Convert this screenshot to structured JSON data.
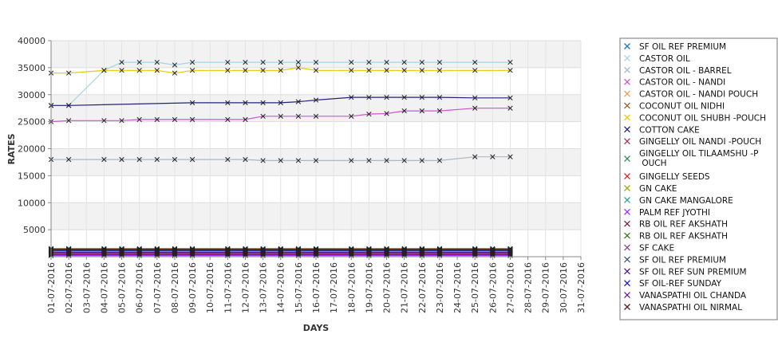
{
  "chart_data": {
    "type": "line",
    "title": "",
    "xlabel": "DAYS",
    "ylabel": "RATES",
    "ylim": [
      0,
      40000
    ],
    "yticks": [
      5000,
      10000,
      15000,
      20000,
      25000,
      30000,
      35000,
      40000
    ],
    "grid": true,
    "legend_position": "right",
    "categories": [
      "01-07-2016",
      "02-07-2016",
      "03-07-2016",
      "04-07-2016",
      "05-07-2016",
      "06-07-2016",
      "07-07-2016",
      "08-07-2016",
      "09-07-2016",
      "10-07-2016",
      "11-07-2016",
      "12-07-2016",
      "13-07-2016",
      "14-07-2016",
      "15-07-2016",
      "16-07-2016",
      "17-07-2016",
      "18-07-2016",
      "19-07-2016",
      "20-07-2016",
      "21-07-2016",
      "22-07-2016",
      "23-07-2016",
      "24-07-2016",
      "25-07-2016",
      "26-07-2016",
      "27-07-2016",
      "28-07-2016",
      "29-07-2016",
      "30-07-2016",
      "31-07-2016"
    ],
    "series": [
      {
        "name": " SF OIL REF PREMIUM",
        "color": "#1f77b4",
        "values": [
          null,
          null,
          null,
          null,
          1200,
          1200,
          1200,
          1200,
          1200,
          null,
          1200,
          1200,
          1200,
          1200,
          1200,
          1200,
          null,
          1200,
          1200,
          1200,
          1200,
          1200,
          1200,
          null,
          1200,
          1200,
          1200,
          null,
          null,
          null,
          null
        ]
      },
      {
        "name": "CASTOR OIL",
        "color": "#a4d4e8",
        "values": [
          28000,
          28000,
          null,
          34500,
          36000,
          36000,
          36000,
          35500,
          36000,
          null,
          36000,
          36000,
          36000,
          36000,
          36000,
          36000,
          null,
          36000,
          36000,
          36000,
          36000,
          36000,
          36000,
          null,
          36000,
          null,
          36000,
          null,
          null,
          null,
          null
        ]
      },
      {
        "name": "CASTOR OIL - BARREL",
        "color": "#aab8c4",
        "values": [
          18000,
          18000,
          null,
          18000,
          18000,
          18000,
          18000,
          18000,
          18000,
          null,
          18000,
          18000,
          17800,
          17800,
          17800,
          17800,
          null,
          17800,
          17800,
          17800,
          17800,
          17800,
          17800,
          null,
          18500,
          18500,
          18500,
          null,
          null,
          null,
          null
        ]
      },
      {
        "name": "CASTOR OIL - NANDI",
        "color": "#cc55cc",
        "values": [
          25000,
          25200,
          null,
          25200,
          25200,
          25400,
          25400,
          25400,
          25400,
          null,
          25400,
          25400,
          26000,
          26000,
          26000,
          26000,
          null,
          26000,
          26400,
          26500,
          27000,
          27000,
          27000,
          null,
          27500,
          null,
          27500,
          null,
          null,
          null,
          null
        ]
      },
      {
        "name": "CASTOR OIL - NANDI POUCH",
        "color": "#e0a060",
        "values": [
          900,
          900,
          null,
          900,
          900,
          900,
          900,
          900,
          900,
          null,
          900,
          900,
          900,
          900,
          900,
          900,
          null,
          900,
          900,
          900,
          900,
          900,
          900,
          null,
          900,
          900,
          900,
          null,
          null,
          null,
          null
        ]
      },
      {
        "name": "COCONUT OIL NIDHI",
        "color": "#996633",
        "values": [
          1500,
          1500,
          null,
          1500,
          1500,
          1500,
          1500,
          1500,
          1500,
          null,
          1500,
          1500,
          1500,
          1500,
          1500,
          1500,
          null,
          1500,
          1500,
          1500,
          1500,
          1500,
          1500,
          null,
          1500,
          1500,
          1500,
          null,
          null,
          null,
          null
        ]
      },
      {
        "name": "COCONUT OIL SHUBH -POUCH",
        "color": "#e8c800",
        "values": [
          34000,
          34000,
          null,
          34500,
          34500,
          34500,
          34500,
          34000,
          34500,
          null,
          34500,
          34500,
          34500,
          34500,
          35000,
          34500,
          null,
          34500,
          34500,
          34500,
          34500,
          34500,
          34500,
          null,
          34500,
          null,
          34500,
          null,
          null,
          null,
          null
        ]
      },
      {
        "name": "COTTON CAKE",
        "color": "#22227a",
        "values": [
          28000,
          28000,
          null,
          null,
          null,
          null,
          null,
          null,
          28500,
          null,
          28500,
          28500,
          28500,
          28500,
          28700,
          29000,
          null,
          29500,
          29500,
          29500,
          29500,
          29500,
          29500,
          null,
          29400,
          null,
          29400,
          null,
          null,
          null,
          null
        ]
      },
      {
        "name": "GINGELLY OIL NANDI -POUCH",
        "color": "#b03060",
        "values": [
          300,
          300,
          null,
          300,
          300,
          300,
          300,
          300,
          300,
          null,
          300,
          300,
          300,
          300,
          300,
          300,
          null,
          300,
          300,
          300,
          300,
          300,
          300,
          null,
          300,
          300,
          300,
          null,
          null,
          null,
          null
        ]
      },
      {
        "name": "GINGELLY OIL TILAAMSHU -P OUCH",
        "color": "#2e8b57",
        "values": [
          1300,
          1300,
          null,
          1300,
          1300,
          1300,
          1300,
          1300,
          1300,
          null,
          1300,
          1300,
          1300,
          1300,
          1300,
          1300,
          null,
          1300,
          1300,
          1300,
          1300,
          1300,
          1300,
          null,
          1300,
          1300,
          1300,
          null,
          null,
          null,
          null
        ]
      },
      {
        "name": "GINGELLY SEEDS",
        "color": "#dd2222",
        "values": [
          500,
          500,
          null,
          500,
          500,
          500,
          500,
          500,
          500,
          null,
          500,
          500,
          500,
          500,
          500,
          500,
          null,
          500,
          500,
          500,
          500,
          500,
          500,
          null,
          500,
          500,
          500,
          null,
          null,
          null,
          null
        ]
      },
      {
        "name": "GN CAKE",
        "color": "#9aaa1a",
        "values": [
          1100,
          1100,
          null,
          1100,
          1100,
          1100,
          1100,
          1100,
          1100,
          null,
          1100,
          1100,
          1100,
          1100,
          1100,
          1100,
          null,
          1100,
          1100,
          1100,
          1100,
          1100,
          1100,
          null,
          1100,
          1100,
          1100,
          null,
          null,
          null,
          null
        ]
      },
      {
        "name": "GN CAKE MANGALORE",
        "color": "#2aa198",
        "values": [
          1000,
          1000,
          null,
          1000,
          1000,
          1000,
          1000,
          1000,
          1000,
          null,
          1000,
          1000,
          1000,
          1000,
          1000,
          1000,
          null,
          1000,
          1000,
          1000,
          1000,
          1000,
          1000,
          null,
          1000,
          1000,
          1000,
          null,
          null,
          null,
          null
        ]
      },
      {
        "name": "PALM REF JYOTHI",
        "color": "#9b30ff",
        "values": [
          200,
          200,
          null,
          200,
          200,
          200,
          200,
          200,
          200,
          null,
          200,
          200,
          200,
          200,
          200,
          200,
          null,
          200,
          200,
          200,
          200,
          200,
          200,
          null,
          200,
          200,
          200,
          null,
          null,
          null,
          null
        ]
      },
      {
        "name": "RB OIL REF  AKSHATH",
        "color": "#7a1f4a",
        "values": [
          700,
          700,
          null,
          700,
          700,
          700,
          700,
          700,
          700,
          null,
          700,
          700,
          700,
          700,
          700,
          700,
          null,
          700,
          700,
          700,
          700,
          700,
          700,
          null,
          700,
          700,
          700,
          null,
          null,
          null,
          null
        ]
      },
      {
        "name": "RB OIL REF AKSHATH",
        "color": "#3a7a1a",
        "values": [
          1400,
          1400,
          null,
          1400,
          1400,
          1400,
          1400,
          1400,
          1400,
          null,
          1400,
          1400,
          1400,
          1400,
          1400,
          1400,
          null,
          1400,
          1400,
          1400,
          1400,
          1400,
          1400,
          null,
          1400,
          1400,
          1400,
          null,
          null,
          null,
          null
        ]
      },
      {
        "name": "SF CAKE",
        "color": "#8e4a8e",
        "values": [
          600,
          600,
          null,
          600,
          600,
          600,
          600,
          600,
          600,
          null,
          600,
          600,
          600,
          600,
          600,
          600,
          null,
          600,
          600,
          600,
          600,
          600,
          600,
          null,
          600,
          600,
          600,
          null,
          null,
          null,
          null
        ]
      },
      {
        "name": "SF OIL REF PREMIUM",
        "color": "#335577",
        "values": [
          1250,
          1250,
          null,
          1250,
          1250,
          1250,
          1250,
          1250,
          1250,
          null,
          1250,
          1250,
          1250,
          1250,
          1250,
          1250,
          null,
          1250,
          1250,
          1250,
          1250,
          1250,
          1250,
          null,
          1250,
          1250,
          1250,
          null,
          null,
          null,
          null
        ]
      },
      {
        "name": "SF OIL REF SUN PREMIUM",
        "color": "#551a8b",
        "values": [
          800,
          800,
          null,
          800,
          800,
          800,
          800,
          800,
          800,
          null,
          800,
          800,
          800,
          800,
          800,
          800,
          null,
          800,
          800,
          800,
          800,
          800,
          800,
          null,
          800,
          800,
          800,
          null,
          null,
          null,
          null
        ]
      },
      {
        "name": "SF OIL-REF SUNDAY",
        "color": "#1a1aaa",
        "values": [
          1150,
          1150,
          null,
          1150,
          1150,
          1150,
          1150,
          1150,
          1150,
          null,
          1150,
          1150,
          1150,
          1150,
          1150,
          1150,
          null,
          1150,
          1150,
          1150,
          1150,
          1150,
          1150,
          null,
          1150,
          1150,
          1150,
          null,
          null,
          null,
          null
        ]
      },
      {
        "name": "VANASPATHI OIL CHANDA",
        "color": "#6a1b9a",
        "values": [
          400,
          400,
          null,
          400,
          400,
          400,
          400,
          400,
          400,
          null,
          400,
          400,
          400,
          400,
          400,
          400,
          null,
          400,
          400,
          400,
          400,
          400,
          400,
          null,
          400,
          400,
          400,
          null,
          null,
          null,
          null
        ]
      },
      {
        "name": "VANASPATHI OIL NIRMAL",
        "color": "#5c1a1a",
        "values": [
          1350,
          1350,
          null,
          1350,
          1350,
          1350,
          1350,
          1350,
          1350,
          null,
          1350,
          1350,
          1350,
          1350,
          1350,
          1350,
          null,
          1350,
          1350,
          1350,
          1350,
          1350,
          1350,
          null,
          1350,
          1350,
          1350,
          null,
          null,
          null,
          null
        ]
      }
    ]
  }
}
